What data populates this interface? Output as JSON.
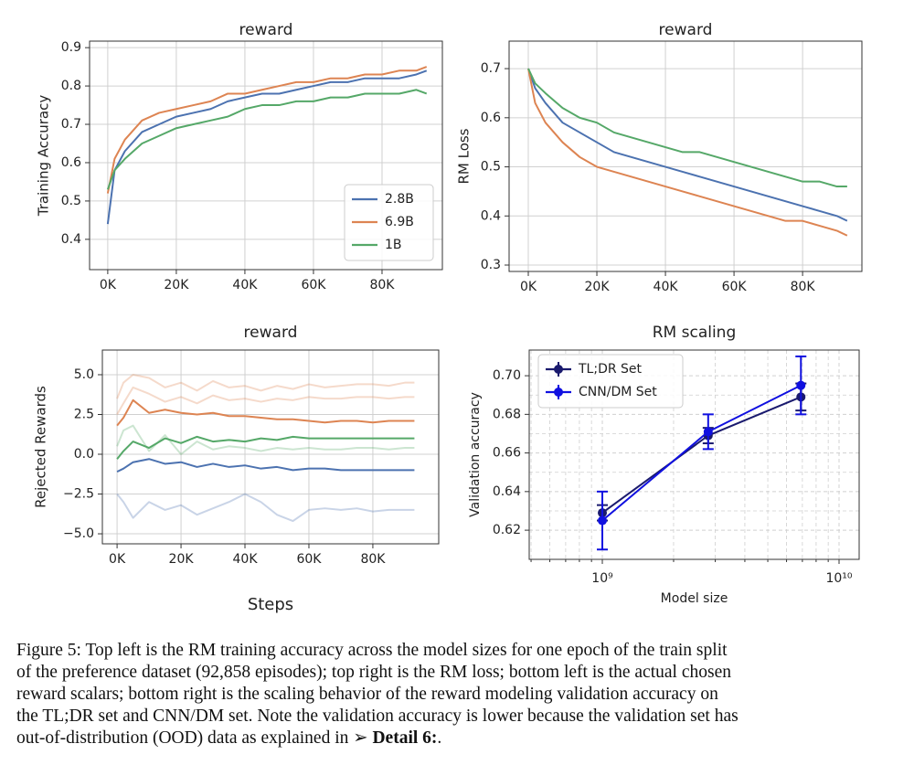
{
  "chart_data": [
    {
      "type": "line",
      "title": "reward",
      "ylabel": "Training Accuracy",
      "x": [
        0,
        2000,
        5000,
        10000,
        15000,
        20000,
        25000,
        30000,
        35000,
        40000,
        45000,
        50000,
        55000,
        60000,
        65000,
        70000,
        75000,
        80000,
        85000,
        90000,
        93000
      ],
      "series": [
        {
          "name": "2.8B",
          "color": "#4c72b0",
          "values": [
            0.44,
            0.58,
            0.63,
            0.68,
            0.7,
            0.72,
            0.73,
            0.74,
            0.76,
            0.77,
            0.78,
            0.78,
            0.79,
            0.8,
            0.81,
            0.81,
            0.82,
            0.82,
            0.82,
            0.83,
            0.84
          ]
        },
        {
          "name": "6.9B",
          "color": "#dd8452",
          "values": [
            0.52,
            0.61,
            0.66,
            0.71,
            0.73,
            0.74,
            0.75,
            0.76,
            0.78,
            0.78,
            0.79,
            0.8,
            0.81,
            0.81,
            0.82,
            0.82,
            0.83,
            0.83,
            0.84,
            0.84,
            0.85
          ]
        },
        {
          "name": "1B",
          "color": "#55a868",
          "values": [
            0.53,
            0.58,
            0.61,
            0.65,
            0.67,
            0.69,
            0.7,
            0.71,
            0.72,
            0.74,
            0.75,
            0.75,
            0.76,
            0.76,
            0.77,
            0.77,
            0.78,
            0.78,
            0.78,
            0.79,
            0.78
          ]
        }
      ],
      "xlim": [
        -5300,
        97600
      ],
      "ylim": [
        0.321,
        0.917
      ],
      "xticks": [
        {
          "value": 0,
          "label": "0K"
        },
        {
          "value": 20000,
          "label": "20K"
        },
        {
          "value": 40000,
          "label": "40K"
        },
        {
          "value": 60000,
          "label": "60K"
        },
        {
          "value": 80000,
          "label": "80K"
        }
      ],
      "yticks": [
        0.4,
        0.5,
        0.6,
        0.7,
        0.8,
        0.9
      ],
      "grid": true,
      "legend": "lower right"
    },
    {
      "type": "line",
      "title": "reward",
      "ylabel": "RM Loss",
      "x": [
        0,
        2000,
        5000,
        10000,
        15000,
        20000,
        25000,
        30000,
        35000,
        40000,
        45000,
        50000,
        55000,
        60000,
        65000,
        70000,
        75000,
        80000,
        85000,
        90000,
        93000
      ],
      "series": [
        {
          "color": "#4c72b0",
          "values": [
            0.7,
            0.66,
            0.63,
            0.59,
            0.57,
            0.55,
            0.53,
            0.52,
            0.51,
            0.5,
            0.49,
            0.48,
            0.47,
            0.46,
            0.45,
            0.44,
            0.43,
            0.42,
            0.41,
            0.4,
            0.39
          ]
        },
        {
          "color": "#dd8452",
          "values": [
            0.7,
            0.63,
            0.59,
            0.55,
            0.52,
            0.5,
            0.49,
            0.48,
            0.47,
            0.46,
            0.45,
            0.44,
            0.43,
            0.42,
            0.41,
            0.4,
            0.39,
            0.39,
            0.38,
            0.37,
            0.36
          ]
        },
        {
          "color": "#55a868",
          "values": [
            0.7,
            0.67,
            0.65,
            0.62,
            0.6,
            0.59,
            0.57,
            0.56,
            0.55,
            0.54,
            0.53,
            0.53,
            0.52,
            0.51,
            0.5,
            0.49,
            0.48,
            0.47,
            0.47,
            0.46,
            0.46
          ]
        }
      ],
      "xlim": [
        -5600,
        97300
      ],
      "ylim": [
        0.287,
        0.756
      ],
      "xticks": [
        {
          "value": 0,
          "label": "0K"
        },
        {
          "value": 20000,
          "label": "20K"
        },
        {
          "value": 40000,
          "label": "40K"
        },
        {
          "value": 60000,
          "label": "60K"
        },
        {
          "value": 80000,
          "label": "80K"
        }
      ],
      "yticks": [
        0.3,
        0.4,
        0.5,
        0.6,
        0.7
      ],
      "grid": true
    },
    {
      "type": "line",
      "title": "reward",
      "xlabel": "Steps",
      "ylabel": "Rejected Rewards",
      "x": [
        0,
        2000,
        5000,
        10000,
        15000,
        20000,
        25000,
        30000,
        35000,
        40000,
        45000,
        50000,
        55000,
        60000,
        65000,
        70000,
        75000,
        80000,
        85000,
        90000,
        93000
      ],
      "series": [
        {
          "color": "#dd8452",
          "opacity": 0.3,
          "values": [
            3.5,
            4.5,
            5.0,
            4.8,
            4.2,
            4.5,
            4.0,
            4.6,
            4.2,
            4.3,
            4.0,
            4.3,
            4.1,
            4.4,
            4.2,
            4.3,
            4.4,
            4.4,
            4.3,
            4.5,
            4.5
          ]
        },
        {
          "color": "#dd8452",
          "opacity": 0.3,
          "values": [
            2.5,
            3.2,
            4.2,
            3.8,
            3.3,
            3.6,
            3.2,
            3.7,
            3.4,
            3.5,
            3.3,
            3.5,
            3.4,
            3.6,
            3.5,
            3.5,
            3.6,
            3.6,
            3.5,
            3.6,
            3.6
          ]
        },
        {
          "color": "#4c72b0",
          "opacity": 0.3,
          "values": [
            -2.5,
            -3.0,
            -4.0,
            -3.0,
            -3.5,
            -3.2,
            -3.8,
            -3.4,
            -3.0,
            -2.5,
            -3.0,
            -3.8,
            -4.2,
            -3.5,
            -3.4,
            -3.5,
            -3.4,
            -3.6,
            -3.5,
            -3.5,
            -3.5
          ]
        },
        {
          "color": "#55a868",
          "opacity": 0.3,
          "values": [
            0.5,
            1.5,
            1.8,
            0.2,
            1.2,
            0.0,
            0.8,
            0.3,
            0.5,
            0.4,
            0.2,
            0.4,
            0.3,
            0.4,
            0.3,
            0.3,
            0.4,
            0.4,
            0.3,
            0.4,
            0.4
          ]
        },
        {
          "color": "#dd8452",
          "values": [
            1.8,
            2.3,
            3.4,
            2.6,
            2.8,
            2.6,
            2.5,
            2.6,
            2.4,
            2.4,
            2.3,
            2.2,
            2.2,
            2.1,
            2.0,
            2.1,
            2.1,
            2.0,
            2.1,
            2.1,
            2.1
          ]
        },
        {
          "color": "#55a868",
          "values": [
            -0.3,
            0.2,
            0.8,
            0.4,
            1.0,
            0.7,
            1.1,
            0.8,
            0.9,
            0.8,
            1.0,
            0.9,
            1.1,
            1.0,
            1.0,
            1.0,
            1.0,
            1.0,
            1.0,
            1.0,
            1.0
          ]
        },
        {
          "color": "#4c72b0",
          "values": [
            -1.1,
            -0.9,
            -0.5,
            -0.3,
            -0.6,
            -0.5,
            -0.8,
            -0.6,
            -0.8,
            -0.7,
            -0.9,
            -0.8,
            -1.0,
            -0.9,
            -0.9,
            -1.0,
            -1.0,
            -1.0,
            -1.0,
            -1.0,
            -1.0
          ]
        }
      ],
      "xlim": [
        -4600,
        100600
      ],
      "ylim": [
        -5.63,
        6.55
      ],
      "xticks": [
        {
          "value": 0,
          "label": "0K"
        },
        {
          "value": 20000,
          "label": "20K"
        },
        {
          "value": 40000,
          "label": "40K"
        },
        {
          "value": 60000,
          "label": "60K"
        },
        {
          "value": 80000,
          "label": "80K"
        }
      ],
      "yticks": [
        {
          "value": 5,
          "label": "5.0"
        },
        {
          "value": 2.5,
          "label": "2.5"
        },
        {
          "value": 0,
          "label": "0.0"
        },
        {
          "value": -2.5,
          "label": "−2.5"
        },
        {
          "value": -5,
          "label": "−5.0"
        }
      ],
      "grid": true
    },
    {
      "type": "line",
      "title": "RM scaling",
      "xlabel": "Model size",
      "ylabel": "Validation accuracy",
      "x": [
        1000000000,
        2800000000,
        6900000000
      ],
      "xscale": "log",
      "markers": true,
      "minor_grid": true,
      "series": [
        {
          "name": "TL;DR Set",
          "color": "#1a1a6e",
          "values": [
            0.629,
            0.669,
            0.689
          ],
          "errors": [
            0.004,
            0.004,
            0.007
          ]
        },
        {
          "name": "CNN/DM Set",
          "color": "#1010e0",
          "values": [
            0.625,
            0.671,
            0.695
          ],
          "errors": [
            0.015,
            0.009,
            0.015
          ]
        }
      ],
      "xlim": [
        491000000,
        12160000000
      ],
      "ylim": [
        0.6049,
        0.7133
      ],
      "xticks": [
        {
          "value": 1000000000,
          "label": "10⁹"
        },
        {
          "value": 10000000000,
          "label": "10¹⁰"
        }
      ],
      "yticks": [
        0.62,
        0.64,
        0.66,
        0.68,
        {
          "value": 0.7,
          "label": "0.70"
        }
      ],
      "grid": true,
      "legend": "upper left"
    }
  ],
  "caption": {
    "lines": [
      "Figure 5: Top left is the RM training accuracy across the model sizes for one epoch of the train split",
      "of the preference dataset (92,858 episodes); top right is the RM loss; bottom left is the actual chosen",
      "reward scalars; bottom right is the scaling behavior of the reward modeling validation accuracy on",
      "the TL;DR set and CNN/DM set. Note the validation accuracy is lower because the validation set has",
      "out-of-distribution (OOD) data as explained in ➢"
    ],
    "bold": "Detail 6:",
    "end": "."
  }
}
